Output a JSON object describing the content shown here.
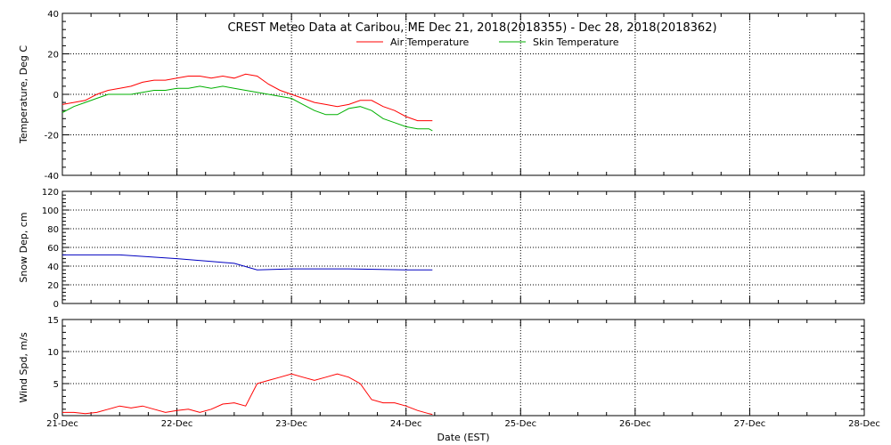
{
  "chart_data": {
    "type": "line",
    "title": "CREST Meteo Data at Caribou, ME   Dec 21, 2018(2018355) - Dec 28, 2018(2018362)",
    "xlabel": "Date (EST)",
    "x_tick_labels": [
      "21-Dec",
      "22-Dec",
      "23-Dec",
      "24-Dec",
      "25-Dec",
      "26-Dec",
      "27-Dec",
      "28-Dec"
    ],
    "xlim_days": [
      0,
      7
    ],
    "grid": true,
    "legend_position": "top-center",
    "colors": {
      "air": "#ff0000",
      "skin": "#00b000",
      "snow": "#0000c0",
      "wind": "#ff0000"
    },
    "panels": [
      {
        "id": "temperature",
        "ylabel": "Temperature, Deg C",
        "ylim": [
          -40,
          40
        ],
        "y_ticks": [
          -40,
          -20,
          0,
          20,
          40
        ],
        "series": [
          {
            "name": "Air Temperature",
            "color": "#ff0000",
            "x": [
              0,
              0.1,
              0.2,
              0.3,
              0.4,
              0.5,
              0.6,
              0.7,
              0.8,
              0.9,
              1.0,
              1.1,
              1.2,
              1.3,
              1.4,
              1.5,
              1.6,
              1.7,
              1.8,
              1.9,
              2.0,
              2.1,
              2.2,
              2.3,
              2.4,
              2.5,
              2.6,
              2.7,
              2.8,
              2.9,
              3.0,
              3.1,
              3.2,
              3.23
            ],
            "values": [
              -5,
              -4,
              -3,
              0,
              2,
              3,
              4,
              6,
              7,
              7,
              8,
              9,
              9,
              8,
              9,
              8,
              10,
              9,
              5,
              2,
              0,
              -2,
              -4,
              -5,
              -6,
              -5,
              -3,
              -3,
              -6,
              -8,
              -11,
              -13,
              -13,
              -13
            ]
          },
          {
            "name": "Skin Temperature",
            "color": "#00b000",
            "x": [
              0,
              0.1,
              0.2,
              0.3,
              0.4,
              0.5,
              0.6,
              0.7,
              0.8,
              0.9,
              1.0,
              1.1,
              1.2,
              1.3,
              1.4,
              1.5,
              1.6,
              1.7,
              1.8,
              1.9,
              2.0,
              2.1,
              2.2,
              2.3,
              2.4,
              2.5,
              2.6,
              2.7,
              2.8,
              2.9,
              3.0,
              3.1,
              3.2,
              3.23
            ],
            "values": [
              -9,
              -6,
              -4,
              -2,
              0,
              0,
              0,
              1,
              2,
              2,
              3,
              3,
              4,
              3,
              4,
              3,
              2,
              1,
              0,
              -1,
              -2,
              -5,
              -8,
              -10,
              -10,
              -7,
              -6,
              -8,
              -12,
              -14,
              -16,
              -17,
              -17,
              -18
            ]
          }
        ]
      },
      {
        "id": "snow",
        "ylabel": "Snow Dep, cm",
        "ylim": [
          0,
          120
        ],
        "y_ticks": [
          0,
          20,
          40,
          60,
          80,
          100,
          120
        ],
        "series": [
          {
            "color": "#0000c0",
            "x": [
              0,
              0.5,
              1.0,
              1.3,
              1.5,
              1.7,
              2.0,
              2.5,
              3.0,
              3.23
            ],
            "values": [
              52,
              52,
              48,
              45,
              43,
              36,
              37,
              37,
              36,
              36
            ]
          }
        ]
      },
      {
        "id": "wind",
        "ylabel": "Wind Spd, m/s",
        "ylim": [
          0,
          15
        ],
        "y_ticks": [
          0,
          5,
          10,
          15
        ],
        "series": [
          {
            "color": "#ff0000",
            "x": [
              0,
              0.1,
              0.2,
              0.3,
              0.4,
              0.5,
              0.6,
              0.7,
              0.8,
              0.9,
              1.0,
              1.1,
              1.2,
              1.3,
              1.4,
              1.5,
              1.6,
              1.7,
              1.8,
              1.9,
              2.0,
              2.1,
              2.2,
              2.3,
              2.4,
              2.5,
              2.6,
              2.7,
              2.8,
              2.9,
              3.0,
              3.1,
              3.2,
              3.23
            ],
            "values": [
              0.5,
              0.5,
              0.3,
              0.5,
              1.0,
              1.5,
              1.2,
              1.5,
              1.0,
              0.5,
              0.8,
              1.0,
              0.5,
              1.0,
              1.8,
              2.0,
              1.5,
              5.0,
              5.5,
              6.0,
              6.5,
              6.0,
              5.5,
              6.0,
              6.5,
              6.0,
              5.0,
              2.5,
              2.0,
              2.0,
              1.5,
              0.8,
              0.3,
              0.2
            ]
          }
        ]
      }
    ]
  }
}
